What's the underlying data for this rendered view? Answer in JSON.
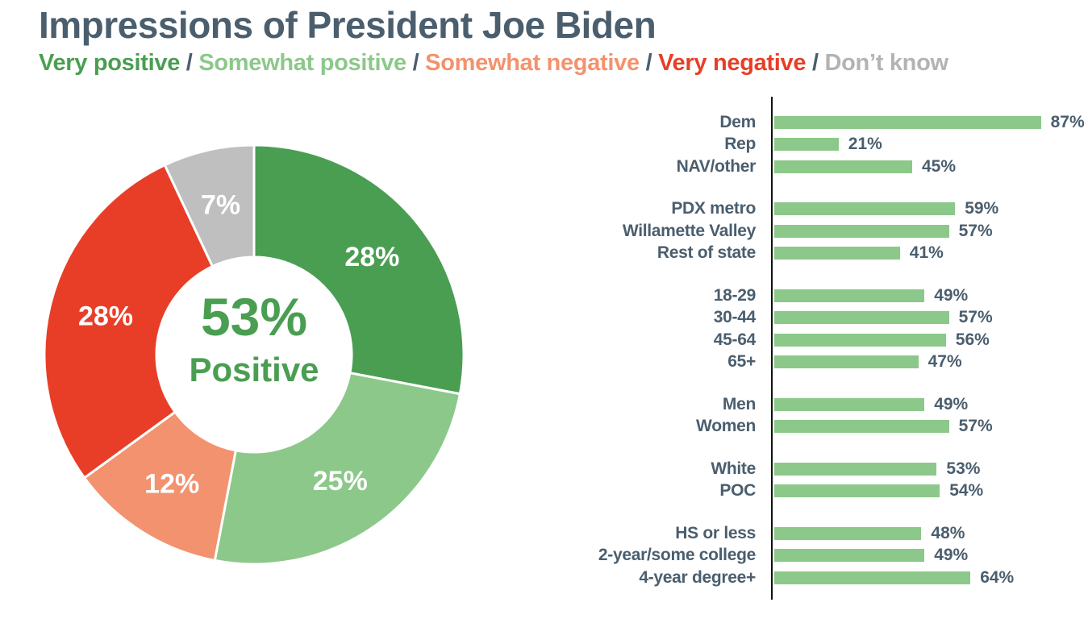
{
  "header": {
    "title": "Impressions of President Joe Biden",
    "legend_separator": "/",
    "legend": [
      {
        "label": "Very positive",
        "color": "#4a9e52"
      },
      {
        "label": "Somewhat positive",
        "color": "#8cc88a"
      },
      {
        "label": "Somewhat negative",
        "color": "#f3926e"
      },
      {
        "label": "Very negative",
        "color": "#e83e27"
      },
      {
        "label": "Don’t know",
        "color": "#b3b3b3"
      }
    ]
  },
  "colors": {
    "title_text": "#4a5e6e",
    "label_text": "#4a5e6e",
    "bar_fill": "#8cc88a",
    "axis_line": "#111111",
    "slice_value_text": "#ffffff",
    "center_text": "#4a9e52"
  },
  "chart_data": [
    {
      "type": "pie",
      "donut": true,
      "start_angle_deg": 0,
      "direction": "clockwise",
      "labels": [
        "Very positive",
        "Somewhat positive",
        "Somewhat negative",
        "Very negative",
        "Don’t know"
      ],
      "values": [
        28,
        25,
        12,
        28,
        7
      ],
      "colors": [
        "#4a9e52",
        "#8cc88a",
        "#f3926e",
        "#e83e27",
        "#bfbfbf"
      ],
      "value_suffix": "%",
      "center_value": "53%",
      "center_label": "Positive"
    },
    {
      "type": "bar",
      "orientation": "horizontal",
      "bar_color": "#8cc88a",
      "value_suffix": "%",
      "xlim": [
        0,
        100
      ],
      "legend_position": "none",
      "grid": false,
      "groups": [
        {
          "rows": [
            {
              "label": "Dem",
              "value": 87
            },
            {
              "label": "Rep",
              "value": 21
            },
            {
              "label": "NAV/other",
              "value": 45
            }
          ]
        },
        {
          "rows": [
            {
              "label": "PDX metro",
              "value": 59
            },
            {
              "label": "Willamette Valley",
              "value": 57
            },
            {
              "label": "Rest of state",
              "value": 41
            }
          ]
        },
        {
          "rows": [
            {
              "label": "18-29",
              "value": 49
            },
            {
              "label": "30-44",
              "value": 57
            },
            {
              "label": "45-64",
              "value": 56
            },
            {
              "label": "65+",
              "value": 47
            }
          ]
        },
        {
          "rows": [
            {
              "label": "Men",
              "value": 49
            },
            {
              "label": "Women",
              "value": 57
            }
          ]
        },
        {
          "rows": [
            {
              "label": "White",
              "value": 53
            },
            {
              "label": "POC",
              "value": 54
            }
          ]
        },
        {
          "rows": [
            {
              "label": "HS or less",
              "value": 48
            },
            {
              "label": "2-year/some college",
              "value": 49
            },
            {
              "label": "4-year degree+",
              "value": 64
            }
          ]
        }
      ]
    }
  ]
}
